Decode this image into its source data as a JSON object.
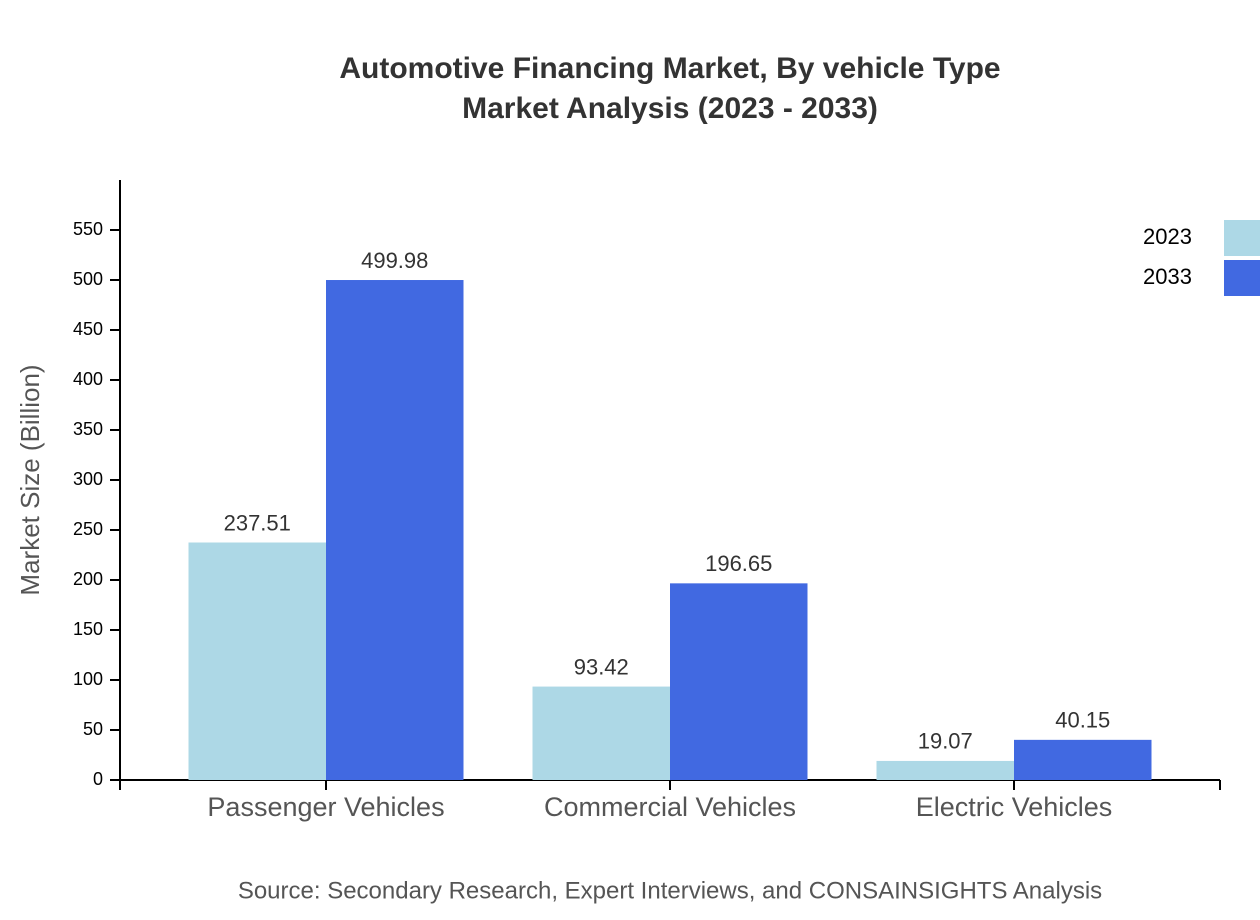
{
  "chart_data": {
    "type": "bar",
    "title": "Automotive Financing Market, By vehicle Type",
    "subtitle": "Market Analysis (2023 - 2033)",
    "y_label": "Market Size (Billion)",
    "source": "Source: Secondary Research, Expert Interviews, and CONSAINSIGHTS Analysis",
    "categories": [
      "Passenger Vehicles",
      "Commercial Vehicles",
      "Electric Vehicles"
    ],
    "series": [
      {
        "name": "2023",
        "color": "#add8e6",
        "values": [
          237.51,
          93.42,
          19.07
        ]
      },
      {
        "name": "2033",
        "color": "#4169e1",
        "values": [
          499.98,
          196.65,
          40.15
        ]
      }
    ],
    "ylim": [
      0,
      600
    ],
    "yticks": [
      0,
      50,
      100,
      150,
      200,
      250,
      300,
      350,
      400,
      450,
      500,
      550
    ],
    "grid": false,
    "legend": "top-right"
  }
}
